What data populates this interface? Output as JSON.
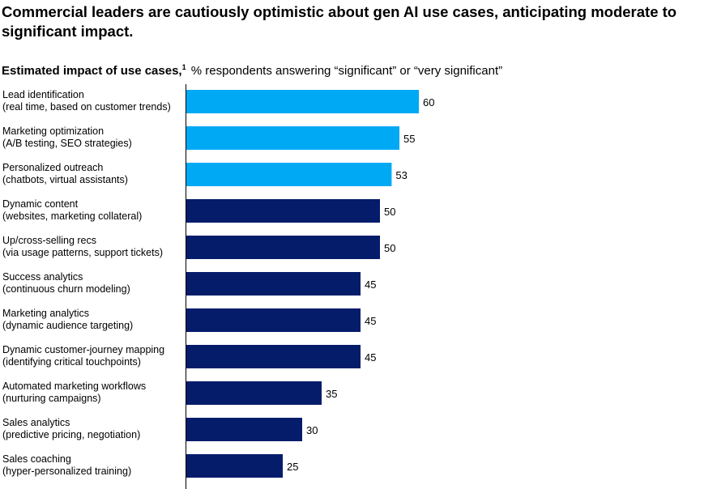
{
  "title": "Commercial leaders are cautiously optimistic about gen AI use cases, anticipating moderate to significant impact.",
  "subtitle": {
    "bold": "Estimated impact of use cases,",
    "footnote": "1",
    "rest": "% respondents answering “significant” or “very significant”"
  },
  "colors": {
    "highlight": "#00a9f4",
    "default": "#051c6b",
    "axis": "#000000"
  },
  "chart_data": {
    "type": "bar",
    "orientation": "horizontal",
    "categories": [
      [
        "Lead identification",
        "(real time, based on customer trends)"
      ],
      [
        "Marketing optimization",
        "(A/B testing, SEO strategies)"
      ],
      [
        "Personalized outreach",
        "(chatbots, virtual assistants)"
      ],
      [
        "Dynamic content",
        "(websites, marketing collateral)"
      ],
      [
        "Up/cross-selling recs",
        "(via usage patterns, support tickets)"
      ],
      [
        "Success analytics",
        "(continuous churn modeling)"
      ],
      [
        "Marketing analytics",
        "(dynamic audience targeting)"
      ],
      [
        "Dynamic customer-journey mapping",
        "(identifying critical touchpoints)"
      ],
      [
        "Automated marketing workflows",
        "(nurturing campaigns)"
      ],
      [
        "Sales analytics",
        "(predictive pricing, negotiation)"
      ],
      [
        "Sales coaching",
        "(hyper-personalized training)"
      ]
    ],
    "values": [
      60,
      55,
      53,
      50,
      50,
      45,
      45,
      45,
      35,
      30,
      25
    ],
    "highlighted": [
      true,
      true,
      true,
      false,
      false,
      false,
      false,
      false,
      false,
      false,
      false
    ],
    "xlim": [
      0,
      60
    ],
    "grid": false,
    "legend": "none"
  }
}
